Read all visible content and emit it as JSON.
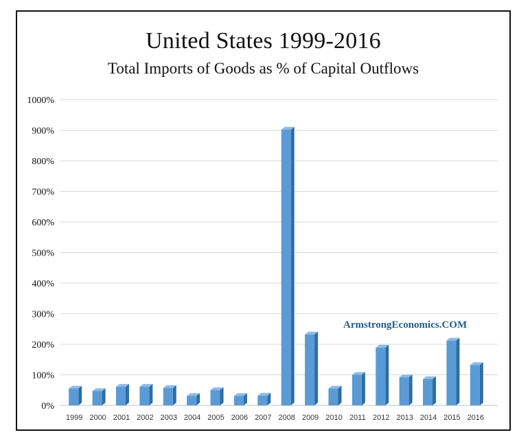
{
  "title": "United States 1999-2016",
  "subtitle": "Total Imports of Goods as % of Capital Outflows",
  "watermark": "ArmstrongEconomics.COM",
  "colors": {
    "bar_front": "#5b9bd5",
    "bar_side": "#2e6da4",
    "bar_top": "#8fbbe6",
    "grid": "#d9d9d9",
    "axis": "#bfbfbf",
    "text": "#111111"
  },
  "chart_data": {
    "type": "bar",
    "title": "United States 1999-2016",
    "subtitle": "Total Imports of Goods as % of Capital Outflows",
    "xlabel": "",
    "ylabel": "",
    "ylim": [
      0,
      1000
    ],
    "yticks": [
      0,
      100,
      200,
      300,
      400,
      500,
      600,
      700,
      800,
      900,
      1000
    ],
    "ytick_labels": [
      "0%",
      "100%",
      "200%",
      "300%",
      "400%",
      "500%",
      "600%",
      "700%",
      "800%",
      "900%",
      "1000%"
    ],
    "grid": true,
    "categories": [
      "1999",
      "2000",
      "2001",
      "2002",
      "2003",
      "2004",
      "2005",
      "2006",
      "2007",
      "2008",
      "2009",
      "2010",
      "2011",
      "2012",
      "2013",
      "2014",
      "2015",
      "2016"
    ],
    "values": [
      55,
      47,
      61,
      61,
      57,
      31,
      50,
      31,
      32,
      902,
      232,
      55,
      100,
      189,
      92,
      86,
      212,
      132
    ]
  }
}
